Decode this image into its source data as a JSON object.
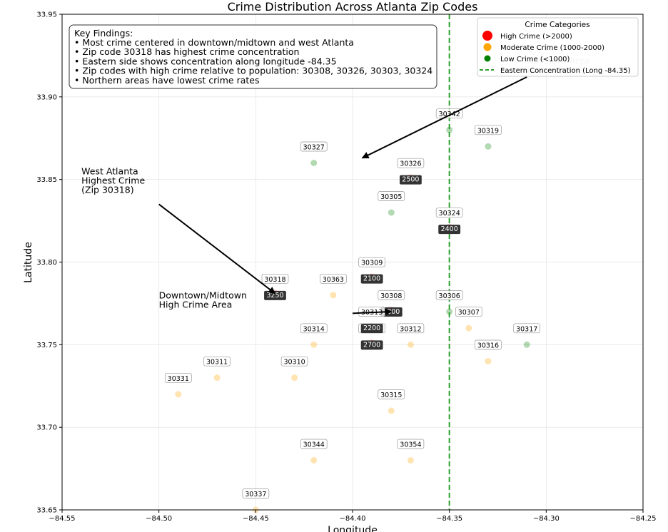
{
  "chart_data": {
    "type": "scatter",
    "title": "Crime Distribution Across Atlanta Zip Codes",
    "xlabel": "Longitude",
    "ylabel": "Latitude",
    "xlim": [
      -84.55,
      -84.25
    ],
    "ylim": [
      33.65,
      33.95
    ],
    "xticks": [
      -84.55,
      -84.5,
      -84.45,
      -84.4,
      -84.35,
      -84.3,
      -84.25
    ],
    "xtick_labels": [
      "−84.55",
      "−84.50",
      "−84.45",
      "−84.40",
      "−84.35",
      "−84.30",
      "−84.25"
    ],
    "yticks": [
      33.65,
      33.7,
      33.75,
      33.8,
      33.85,
      33.9,
      33.95
    ],
    "ytick_labels": [
      "33.65",
      "33.70",
      "33.75",
      "33.80",
      "33.85",
      "33.90",
      "33.95"
    ],
    "grid": true,
    "colors": {
      "high": "#ff0000",
      "moderate": "#ffa500",
      "low": "#008000",
      "line": "#2ca02c"
    },
    "points": [
      {
        "zip": "30318",
        "lon": -84.44,
        "lat": 33.78,
        "category": "high",
        "count": "3250"
      },
      {
        "zip": "30308",
        "lon": -84.38,
        "lat": 33.77,
        "category": "high",
        "count": "2800"
      },
      {
        "zip": "30303",
        "lon": -84.39,
        "lat": 33.75,
        "category": "high",
        "count": "2700"
      },
      {
        "zip": "30326",
        "lon": -84.37,
        "lat": 33.85,
        "category": "high",
        "count": "2500"
      },
      {
        "zip": "30324",
        "lon": -84.35,
        "lat": 33.82,
        "category": "high",
        "count": "2400"
      },
      {
        "zip": "30313",
        "lon": -84.39,
        "lat": 33.76,
        "category": "high",
        "count": "2200"
      },
      {
        "zip": "30309",
        "lon": -84.39,
        "lat": 33.79,
        "category": "high",
        "count": "2100"
      },
      {
        "zip": "30342",
        "lon": -84.35,
        "lat": 33.88,
        "category": "low",
        "count": ""
      },
      {
        "zip": "30319",
        "lon": -84.33,
        "lat": 33.87,
        "category": "low",
        "count": ""
      },
      {
        "zip": "30327",
        "lon": -84.42,
        "lat": 33.86,
        "category": "low",
        "count": ""
      },
      {
        "zip": "30305",
        "lon": -84.38,
        "lat": 33.83,
        "category": "low",
        "count": ""
      },
      {
        "zip": "30363",
        "lon": -84.41,
        "lat": 33.78,
        "category": "moderate",
        "count": ""
      },
      {
        "zip": "30306",
        "lon": -84.35,
        "lat": 33.77,
        "category": "low",
        "count": ""
      },
      {
        "zip": "30307",
        "lon": -84.34,
        "lat": 33.76,
        "category": "moderate",
        "count": ""
      },
      {
        "zip": "30314",
        "lon": -84.42,
        "lat": 33.75,
        "category": "moderate",
        "count": ""
      },
      {
        "zip": "30312",
        "lon": -84.37,
        "lat": 33.75,
        "category": "moderate",
        "count": ""
      },
      {
        "zip": "30317",
        "lon": -84.31,
        "lat": 33.75,
        "category": "low",
        "count": ""
      },
      {
        "zip": "30316",
        "lon": -84.33,
        "lat": 33.74,
        "category": "moderate",
        "count": ""
      },
      {
        "zip": "30311",
        "lon": -84.47,
        "lat": 33.73,
        "category": "moderate",
        "count": ""
      },
      {
        "zip": "30310",
        "lon": -84.43,
        "lat": 33.73,
        "category": "moderate",
        "count": ""
      },
      {
        "zip": "30331",
        "lon": -84.49,
        "lat": 33.72,
        "category": "moderate",
        "count": ""
      },
      {
        "zip": "30315",
        "lon": -84.38,
        "lat": 33.71,
        "category": "moderate",
        "count": ""
      },
      {
        "zip": "30344",
        "lon": -84.42,
        "lat": 33.68,
        "category": "moderate",
        "count": ""
      },
      {
        "zip": "30354",
        "lon": -84.37,
        "lat": 33.68,
        "category": "moderate",
        "count": ""
      },
      {
        "zip": "30337",
        "lon": -84.45,
        "lat": 33.65,
        "category": "moderate",
        "count": ""
      }
    ],
    "vline": {
      "x": -84.35,
      "label": "Eastern Concentration (Long -84.35)"
    },
    "legend": {
      "title": "Crime Categories",
      "placement": "top-right",
      "entries": [
        {
          "label": "High Crime (>2000)",
          "category": "high"
        },
        {
          "label": "Moderate Crime (1000-2000)",
          "category": "moderate"
        },
        {
          "label": "Low Crime (<1000)",
          "category": "low"
        },
        {
          "label": "Eastern Concentration (Long -84.35)",
          "category": "line"
        }
      ]
    },
    "key_findings": {
      "title": "Key Findings:",
      "lines": [
        "• Most crime centered in downtown/midtown and west Atlanta",
        "• Zip code 30318 has highest crime concentration",
        "• Eastern side shows concentration along longitude -84.35",
        "• Zip codes with high crime relative to population: 30308, 30326, 30303, 30324",
        "• Northern areas have lowest crime rates"
      ]
    },
    "annotations": [
      {
        "lines": [
          "West Atlanta",
          "Highest Crime",
          "(Zip 30318)"
        ],
        "text_at": [
          -84.54,
          33.853
        ],
        "arrow_from": [
          -84.5,
          33.835
        ],
        "arrow_to": [
          -84.44,
          33.781
        ]
      },
      {
        "lines": [
          "Downtown/Midtown",
          "High Crime Area"
        ],
        "text_at": [
          -84.5,
          33.778
        ],
        "arrow_from": [
          -84.4,
          33.769
        ],
        "arrow_to": [
          -84.38,
          33.77
        ]
      },
      {
        "lines": [
          "Northern Area",
          "Lower Crime"
        ],
        "text_at": [
          -84.31,
          33.92
        ],
        "arrow_from": [
          -84.31,
          33.912
        ],
        "arrow_to": [
          -84.395,
          33.863
        ]
      }
    ]
  }
}
